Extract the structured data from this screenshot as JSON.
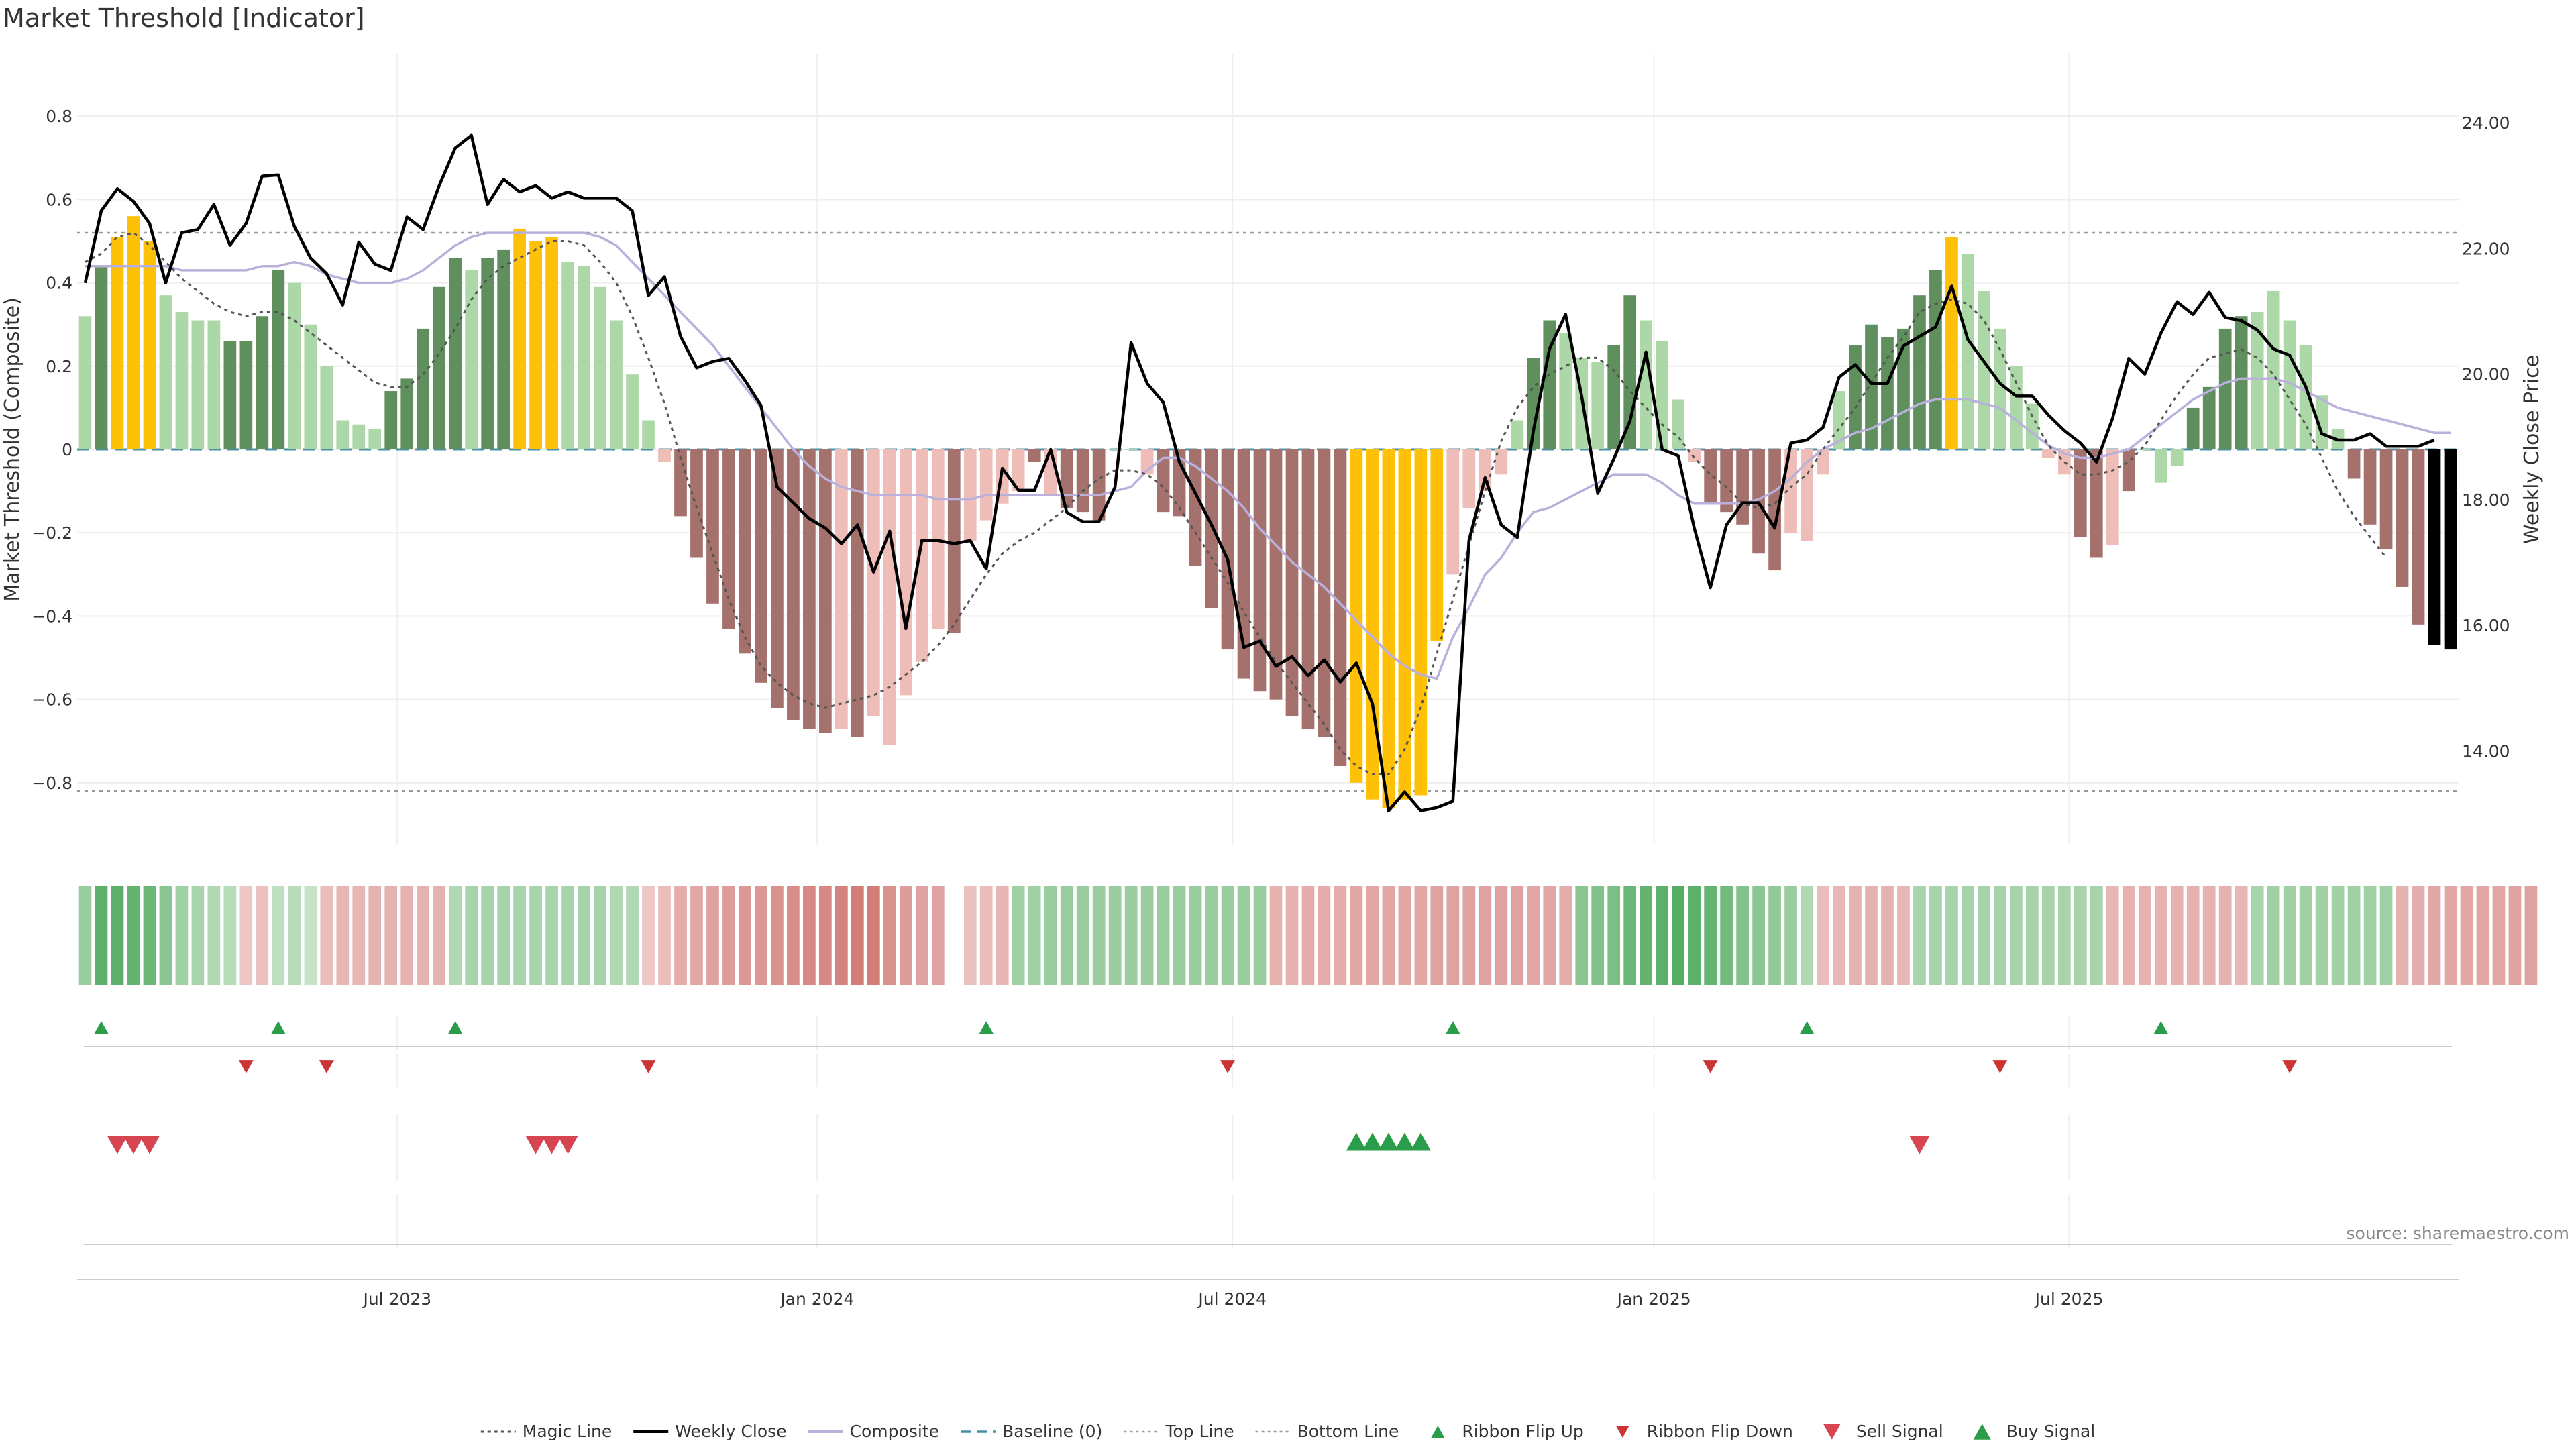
{
  "chart_data": {
    "type": "bar",
    "title": "Market Threshold [Indicator]",
    "ylabel": "Market Threshold (Composite)",
    "y2label": "Weekly Close Price",
    "source": "source: sharemaestro.com",
    "ylim": [
      -0.95,
      0.95
    ],
    "y2lim": [
      12.5,
      25.1
    ],
    "yticks": [
      "0.8",
      "0.6",
      "0.4",
      "0.2",
      "0",
      "−0.2",
      "−0.4",
      "−0.6",
      "−0.8"
    ],
    "yticks_values": [
      0.8,
      0.6,
      0.4,
      0.2,
      0,
      -0.2,
      -0.4,
      -0.6,
      -0.8
    ],
    "y2ticks": [
      "24.00",
      "22.00",
      "20.00",
      "18.00",
      "16.00",
      "14.00"
    ],
    "y2ticks_values": [
      24,
      22,
      20,
      18,
      16,
      14
    ],
    "x_ticks": [
      {
        "label": "Jul 2023",
        "week": 19.9
      },
      {
        "label": "Jan 2024",
        "week": 46.0
      },
      {
        "label": "Jul 2024",
        "week": 71.8
      },
      {
        "label": "Jan 2025",
        "week": 98.0
      },
      {
        "label": "Jul 2025",
        "week": 123.8
      }
    ],
    "top_line": 0.52,
    "bottom_line": -0.82,
    "composite": [
      0.32,
      0.44,
      0.51,
      0.56,
      0.5,
      0.37,
      0.33,
      0.31,
      0.31,
      0.26,
      0.26,
      0.32,
      0.43,
      0.4,
      0.3,
      0.2,
      0.07,
      0.06,
      0.05,
      0.14,
      0.17,
      0.29,
      0.39,
      0.46,
      0.43,
      0.46,
      0.48,
      0.53,
      0.5,
      0.51,
      0.45,
      0.44,
      0.39,
      0.31,
      0.18,
      0.07,
      -0.03,
      -0.16,
      -0.26,
      -0.37,
      -0.43,
      -0.49,
      -0.56,
      -0.62,
      -0.65,
      -0.67,
      -0.68,
      -0.67,
      -0.69,
      -0.64,
      -0.71,
      -0.59,
      -0.51,
      -0.43,
      -0.44,
      -0.22,
      -0.17,
      -0.13,
      -0.1,
      -0.03,
      -0.11,
      -0.14,
      -0.15,
      -0.17,
      0.0,
      0.0,
      -0.06,
      -0.15,
      -0.16,
      -0.28,
      -0.38,
      -0.48,
      -0.55,
      -0.58,
      -0.6,
      -0.64,
      -0.67,
      -0.69,
      -0.76,
      -0.8,
      -0.84,
      -0.86,
      -0.84,
      -0.83,
      -0.46,
      -0.3,
      -0.14,
      -0.1,
      -0.06,
      0.07,
      0.22,
      0.31,
      0.28,
      0.22,
      0.21,
      0.25,
      0.37,
      0.31,
      0.26,
      0.12,
      -0.03,
      -0.13,
      -0.15,
      -0.18,
      -0.25,
      -0.29,
      -0.2,
      -0.22,
      -0.06,
      0.14,
      0.25,
      0.3,
      0.27,
      0.29,
      0.37,
      0.43,
      0.51,
      0.47,
      0.38,
      0.29,
      0.2,
      0.11,
      -0.02,
      -0.06,
      -0.21,
      -0.26,
      -0.23,
      -0.1,
      0.0,
      -0.08,
      -0.04,
      0.1,
      0.15,
      0.29,
      0.32,
      0.33,
      0.38,
      0.31,
      0.25,
      0.13,
      0.05,
      -0.07,
      -0.18,
      -0.24,
      -0.33,
      -0.42,
      -0.47,
      -0.48
    ],
    "weekly_close": [
      21.45,
      22.6,
      22.95,
      22.75,
      22.4,
      21.45,
      22.25,
      22.3,
      22.7,
      22.05,
      22.4,
      23.15,
      23.17,
      22.35,
      21.85,
      21.6,
      21.1,
      22.1,
      21.75,
      21.65,
      22.5,
      22.3,
      23.0,
      23.6,
      23.8,
      22.7,
      23.1,
      22.9,
      23.0,
      22.8,
      22.9,
      22.8,
      22.8,
      22.8,
      22.6,
      21.25,
      21.55,
      20.6,
      20.1,
      20.2,
      20.25,
      19.9,
      19.5,
      18.2,
      17.95,
      17.7,
      17.55,
      17.3,
      17.6,
      16.85,
      17.5,
      15.95,
      17.35,
      17.35,
      17.3,
      17.35,
      16.9,
      18.5,
      18.15,
      18.15,
      18.8,
      17.8,
      17.65,
      17.65,
      18.2,
      20.5,
      19.85,
      19.55,
      18.6,
      18.1,
      17.6,
      17.05,
      15.65,
      15.75,
      15.35,
      15.5,
      15.2,
      15.45,
      15.1,
      15.4,
      14.75,
      13.05,
      13.35,
      13.05,
      13.1,
      13.2,
      17.35,
      18.35,
      17.6,
      17.4,
      19.1,
      20.4,
      20.95,
      19.65,
      18.1,
      18.65,
      19.25,
      20.35,
      18.8,
      18.7,
      17.55,
      16.6,
      17.6,
      17.95,
      17.95,
      17.55,
      18.9,
      18.95,
      19.15,
      19.95,
      20.15,
      19.85,
      19.85,
      20.45,
      20.6,
      20.75,
      21.4,
      20.55,
      20.2,
      19.85,
      19.65,
      19.65,
      19.35,
      19.1,
      18.9,
      18.6,
      19.3,
      20.25,
      20.0,
      20.65,
      21.15,
      20.95,
      21.3,
      20.9,
      20.85,
      20.7,
      20.4,
      20.3,
      19.8,
      19.05,
      18.95,
      18.95,
      19.05,
      18.85,
      18.85,
      18.85,
      18.95
    ],
    "magic_line": [
      0.45,
      0.47,
      0.51,
      0.52,
      0.49,
      0.45,
      0.41,
      0.38,
      0.35,
      0.33,
      0.32,
      0.33,
      0.33,
      0.31,
      0.28,
      0.25,
      0.22,
      0.19,
      0.16,
      0.15,
      0.15,
      0.18,
      0.23,
      0.29,
      0.36,
      0.41,
      0.44,
      0.46,
      0.48,
      0.5,
      0.5,
      0.49,
      0.45,
      0.4,
      0.32,
      0.22,
      0.11,
      -0.02,
      -0.14,
      -0.25,
      -0.36,
      -0.45,
      -0.52,
      -0.56,
      -0.59,
      -0.61,
      -0.62,
      -0.61,
      -0.6,
      -0.59,
      -0.57,
      -0.54,
      -0.51,
      -0.47,
      -0.42,
      -0.36,
      -0.3,
      -0.25,
      -0.22,
      -0.2,
      -0.17,
      -0.14,
      -0.1,
      -0.07,
      -0.05,
      -0.05,
      -0.06,
      -0.09,
      -0.14,
      -0.2,
      -0.26,
      -0.32,
      -0.39,
      -0.45,
      -0.51,
      -0.56,
      -0.61,
      -0.66,
      -0.72,
      -0.76,
      -0.78,
      -0.78,
      -0.72,
      -0.62,
      -0.49,
      -0.36,
      -0.23,
      -0.1,
      0.02,
      0.1,
      0.15,
      0.18,
      0.2,
      0.22,
      0.22,
      0.19,
      0.14,
      0.1,
      0.06,
      0.03,
      -0.02,
      -0.06,
      -0.09,
      -0.13,
      -0.14,
      -0.13,
      -0.09,
      -0.06,
      0.0,
      0.05,
      0.1,
      0.16,
      0.22,
      0.27,
      0.33,
      0.35,
      0.36,
      0.35,
      0.31,
      0.24,
      0.16,
      0.08,
      0.01,
      -0.03,
      -0.06,
      -0.06,
      -0.05,
      -0.03,
      0.01,
      0.07,
      0.13,
      0.18,
      0.22,
      0.23,
      0.24,
      0.22,
      0.18,
      0.12,
      0.06,
      -0.02,
      -0.1,
      -0.16,
      -0.21,
      -0.26
    ],
    "composite_smooth": [
      0.44,
      0.44,
      0.44,
      0.44,
      0.44,
      0.44,
      0.43,
      0.43,
      0.43,
      0.43,
      0.43,
      0.44,
      0.44,
      0.45,
      0.44,
      0.42,
      0.41,
      0.4,
      0.4,
      0.4,
      0.41,
      0.43,
      0.46,
      0.49,
      0.51,
      0.52,
      0.52,
      0.52,
      0.52,
      0.52,
      0.52,
      0.52,
      0.51,
      0.49,
      0.45,
      0.41,
      0.37,
      0.33,
      0.29,
      0.25,
      0.2,
      0.15,
      0.1,
      0.05,
      0.0,
      -0.04,
      -0.07,
      -0.09,
      -0.1,
      -0.11,
      -0.11,
      -0.11,
      -0.11,
      -0.12,
      -0.12,
      -0.12,
      -0.11,
      -0.11,
      -0.11,
      -0.11,
      -0.11,
      -0.11,
      -0.11,
      -0.11,
      -0.1,
      -0.09,
      -0.05,
      -0.02,
      -0.02,
      -0.04,
      -0.07,
      -0.1,
      -0.14,
      -0.19,
      -0.23,
      -0.27,
      -0.3,
      -0.33,
      -0.37,
      -0.41,
      -0.45,
      -0.49,
      -0.52,
      -0.54,
      -0.55,
      -0.45,
      -0.38,
      -0.3,
      -0.26,
      -0.2,
      -0.15,
      -0.14,
      -0.12,
      -0.1,
      -0.08,
      -0.06,
      -0.06,
      -0.06,
      -0.08,
      -0.11,
      -0.13,
      -0.13,
      -0.13,
      -0.13,
      -0.12,
      -0.1,
      -0.07,
      -0.03,
      0.0,
      0.02,
      0.04,
      0.05,
      0.07,
      0.09,
      0.11,
      0.12,
      0.12,
      0.12,
      0.11,
      0.1,
      0.07,
      0.04,
      0.01,
      -0.01,
      -0.02,
      -0.02,
      -0.01,
      0.0,
      0.03,
      0.06,
      0.09,
      0.12,
      0.14,
      0.16,
      0.17,
      0.17,
      0.17,
      0.16,
      0.14,
      0.12,
      0.1,
      0.09,
      0.08,
      0.07,
      0.06,
      0.05,
      0.04,
      0.04
    ],
    "bar_state": [
      1,
      2,
      3,
      3,
      3,
      1,
      1,
      1,
      1,
      2,
      2,
      2,
      2,
      1,
      1,
      1,
      1,
      1,
      1,
      2,
      2,
      2,
      2,
      2,
      1,
      2,
      2,
      3,
      3,
      3,
      1,
      1,
      1,
      1,
      1,
      1,
      5,
      4,
      4,
      4,
      4,
      4,
      4,
      4,
      4,
      4,
      4,
      5,
      4,
      5,
      5,
      5,
      5,
      5,
      4,
      5,
      5,
      5,
      5,
      4,
      5,
      4,
      4,
      4,
      1,
      1,
      5,
      4,
      4,
      4,
      4,
      4,
      4,
      4,
      4,
      4,
      4,
      4,
      4,
      3,
      3,
      3,
      3,
      3,
      3,
      5,
      5,
      5,
      5,
      1,
      2,
      2,
      1,
      1,
      1,
      2,
      2,
      1,
      1,
      1,
      5,
      4,
      4,
      4,
      4,
      4,
      5,
      5,
      5,
      1,
      2,
      2,
      2,
      2,
      2,
      2,
      3,
      1,
      1,
      1,
      1,
      1,
      5,
      5,
      4,
      4,
      5,
      4,
      5,
      1,
      1,
      2,
      2,
      2,
      2,
      1,
      1,
      1,
      1,
      1,
      5,
      4,
      4,
      4,
      4,
      4
    ],
    "ribbon_strength": [
      0.45,
      0.85,
      0.85,
      0.8,
      0.75,
      0.55,
      0.4,
      0.35,
      0.3,
      0.25,
      -0.15,
      -0.2,
      0.2,
      0.25,
      0.15,
      -0.25,
      -0.3,
      -0.3,
      -0.35,
      -0.35,
      -0.35,
      -0.35,
      -0.35,
      0.3,
      0.35,
      0.35,
      0.35,
      0.35,
      0.35,
      0.35,
      0.35,
      0.35,
      0.35,
      0.3,
      0.3,
      -0.15,
      -0.25,
      -0.4,
      -0.45,
      -0.5,
      -0.55,
      -0.6,
      -0.6,
      -0.65,
      -0.7,
      -0.75,
      -0.75,
      -0.8,
      -0.85,
      -0.85,
      -0.65,
      -0.55,
      -0.5,
      -0.5,
      null,
      -0.2,
      -0.25,
      -0.3,
      0.4,
      0.4,
      0.45,
      0.45,
      0.45,
      0.45,
      0.45,
      0.45,
      0.45,
      0.45,
      0.45,
      0.45,
      0.45,
      0.45,
      0.45,
      0.45,
      -0.35,
      -0.35,
      -0.4,
      -0.4,
      -0.4,
      -0.45,
      -0.45,
      -0.45,
      -0.45,
      -0.45,
      -0.5,
      -0.5,
      -0.5,
      -0.5,
      -0.5,
      -0.5,
      -0.45,
      -0.45,
      -0.4,
      0.55,
      0.6,
      0.65,
      0.75,
      0.8,
      0.85,
      0.9,
      0.85,
      0.8,
      0.7,
      0.6,
      0.55,
      0.5,
      0.45,
      0.3,
      -0.25,
      -0.3,
      -0.35,
      -0.35,
      -0.35,
      -0.3,
      0.35,
      0.35,
      0.35,
      0.35,
      0.35,
      0.35,
      0.35,
      0.35,
      0.35,
      0.35,
      0.35,
      0.35,
      -0.3,
      -0.35,
      -0.35,
      -0.35,
      -0.35,
      -0.35,
      -0.35,
      -0.35,
      -0.3,
      0.35,
      0.4,
      0.4,
      0.4,
      0.4,
      0.4,
      0.4,
      0.4,
      0.4,
      -0.35,
      -0.4,
      -0.45,
      -0.45,
      -0.45,
      -0.45,
      -0.45,
      -0.5,
      -0.5
    ],
    "ribbon_flip_up": [
      1,
      12,
      23,
      56,
      85,
      107,
      129
    ],
    "ribbon_flip_down": [
      10,
      15,
      35,
      71,
      101,
      119,
      137
    ],
    "sell_signal": [
      2,
      3,
      4,
      28,
      29,
      30,
      114
    ],
    "buy_signal": [
      79,
      80,
      81,
      82,
      83
    ],
    "legend": [
      {
        "label": "Magic Line",
        "kind": "dotted",
        "color": "#555555"
      },
      {
        "label": "Weekly Close",
        "kind": "solid",
        "color": "#000000"
      },
      {
        "label": "Composite",
        "kind": "solid",
        "color": "#b9b0dc"
      },
      {
        "label": "Baseline (0)",
        "kind": "dashed",
        "color": "#4a8fa8"
      },
      {
        "label": "Top Line",
        "kind": "dotted-light",
        "color": "#999999"
      },
      {
        "label": "Bottom Line",
        "kind": "dotted-light",
        "color": "#999999"
      },
      {
        "label": "Ribbon Flip Up",
        "kind": "tri-up-small",
        "color": "#2a9d4a"
      },
      {
        "label": "Ribbon Flip Down",
        "kind": "tri-down-small",
        "color": "#cc3333"
      },
      {
        "label": "Sell Signal",
        "kind": "tri-down",
        "color": "#d64550"
      },
      {
        "label": "Buy Signal",
        "kind": "tri-up",
        "color": "#2a9d4a"
      }
    ],
    "colors": {
      "pos_light": "#acd8a7",
      "pos_dark": "#5f8f5c",
      "neg_light": "#eebdb8",
      "neg_dark": "#a5716c",
      "extreme": "#ffc107",
      "flip_up": "#2a9d4a",
      "flip_down": "#cc3333",
      "sell": "#d64550",
      "buy": "#2a9d4a"
    }
  }
}
